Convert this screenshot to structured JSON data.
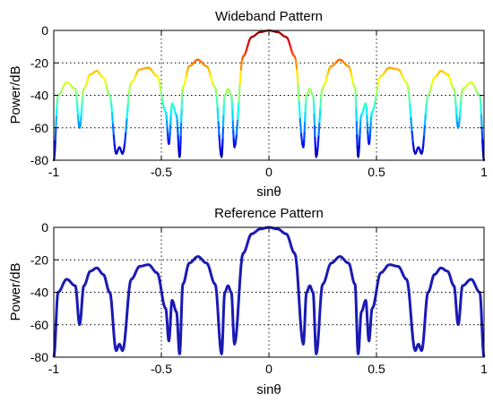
{
  "chart_data": [
    {
      "type": "line",
      "title": "Wideband Pattern",
      "xlabel": "sinθ",
      "ylabel": "Power/dB",
      "xlim": [
        -1,
        1
      ],
      "ylim": [
        -80,
        0
      ],
      "xticks": [
        -1,
        -0.5,
        0,
        0.5,
        1
      ],
      "xtick_labels": [
        "-1",
        "-0.5",
        "0",
        "0.5",
        "1"
      ],
      "yticks": [
        0,
        -20,
        -40,
        -60,
        -80
      ],
      "ytick_labels": [
        "0",
        "-20",
        "-40",
        "-60",
        "-80"
      ],
      "grid": true,
      "colormap": "jet (color by power)",
      "series": [
        {
          "color": "#1a1ab4",
          "x": [
            -1.0,
            -0.98,
            -0.94,
            -0.9,
            -0.88,
            -0.86,
            -0.83,
            -0.8,
            -0.77,
            -0.74,
            -0.71,
            -0.695,
            -0.68,
            -0.64,
            -0.6,
            -0.56,
            -0.52,
            -0.48,
            -0.465,
            -0.45,
            -0.43,
            -0.415,
            -0.4,
            -0.37,
            -0.33,
            -0.29,
            -0.25,
            -0.22,
            -0.205,
            -0.19,
            -0.175,
            -0.16,
            -0.12,
            -0.08,
            -0.04,
            0.0,
            0.04,
            0.08,
            0.12,
            0.16,
            0.175,
            0.19,
            0.205,
            0.22,
            0.25,
            0.29,
            0.33,
            0.37,
            0.4,
            0.415,
            0.43,
            0.45,
            0.465,
            0.48,
            0.52,
            0.56,
            0.6,
            0.64,
            0.68,
            0.695,
            0.71,
            0.74,
            0.77,
            0.8,
            0.83,
            0.86,
            0.88,
            0.9,
            0.94,
            0.98,
            1.0
          ],
          "y": [
            -80,
            -40,
            -32,
            -36,
            -60,
            -36,
            -27,
            -25,
            -29,
            -40,
            -76,
            -72,
            -76,
            -32,
            -24,
            -23,
            -28,
            -50,
            -70,
            -45,
            -52,
            -78,
            -35,
            -22,
            -18,
            -22,
            -35,
            -78,
            -40,
            -36,
            -40,
            -72,
            -16,
            -4,
            -1,
            0,
            -1,
            -4,
            -16,
            -72,
            -40,
            -36,
            -40,
            -78,
            -35,
            -22,
            -18,
            -22,
            -35,
            -78,
            -52,
            -45,
            -70,
            -50,
            -28,
            -23,
            -24,
            -32,
            -76,
            -72,
            -76,
            -40,
            -29,
            -25,
            -27,
            -36,
            -60,
            -36,
            -32,
            -40,
            -80
          ]
        }
      ]
    },
    {
      "type": "line",
      "title": "Reference Pattern",
      "xlabel": "sinθ",
      "ylabel": "Power/dB",
      "xlim": [
        -1,
        1
      ],
      "ylim": [
        -80,
        0
      ],
      "xticks": [
        -1,
        -0.5,
        0,
        0.5,
        1
      ],
      "xtick_labels": [
        "-1",
        "-0.5",
        "0",
        "0.5",
        "1"
      ],
      "yticks": [
        0,
        -20,
        -40,
        -60,
        -80
      ],
      "ytick_labels": [
        "0",
        "-20",
        "-40",
        "-60",
        "-80"
      ],
      "grid": true,
      "series": [
        {
          "color": "#1a1ab4",
          "x": [
            -1.0,
            -0.98,
            -0.94,
            -0.9,
            -0.88,
            -0.86,
            -0.83,
            -0.8,
            -0.77,
            -0.74,
            -0.71,
            -0.695,
            -0.68,
            -0.64,
            -0.6,
            -0.56,
            -0.52,
            -0.48,
            -0.465,
            -0.45,
            -0.43,
            -0.415,
            -0.4,
            -0.37,
            -0.33,
            -0.29,
            -0.25,
            -0.22,
            -0.205,
            -0.19,
            -0.175,
            -0.16,
            -0.12,
            -0.08,
            -0.04,
            0.0,
            0.04,
            0.08,
            0.12,
            0.16,
            0.175,
            0.19,
            0.205,
            0.22,
            0.25,
            0.29,
            0.33,
            0.37,
            0.4,
            0.415,
            0.43,
            0.45,
            0.465,
            0.48,
            0.52,
            0.56,
            0.6,
            0.64,
            0.68,
            0.695,
            0.71,
            0.74,
            0.77,
            0.8,
            0.83,
            0.86,
            0.88,
            0.9,
            0.94,
            0.98,
            1.0
          ],
          "y": [
            -80,
            -40,
            -32,
            -36,
            -60,
            -36,
            -27,
            -25,
            -29,
            -40,
            -76,
            -72,
            -76,
            -32,
            -24,
            -23,
            -28,
            -50,
            -70,
            -45,
            -52,
            -78,
            -35,
            -22,
            -18,
            -22,
            -35,
            -78,
            -40,
            -36,
            -40,
            -72,
            -16,
            -4,
            -1,
            0,
            -1,
            -4,
            -16,
            -72,
            -40,
            -36,
            -40,
            -78,
            -35,
            -22,
            -18,
            -22,
            -35,
            -78,
            -52,
            -45,
            -70,
            -50,
            -28,
            -23,
            -24,
            -32,
            -76,
            -72,
            -76,
            -40,
            -29,
            -25,
            -27,
            -36,
            -60,
            -36,
            -32,
            -40,
            -80
          ]
        }
      ]
    }
  ]
}
